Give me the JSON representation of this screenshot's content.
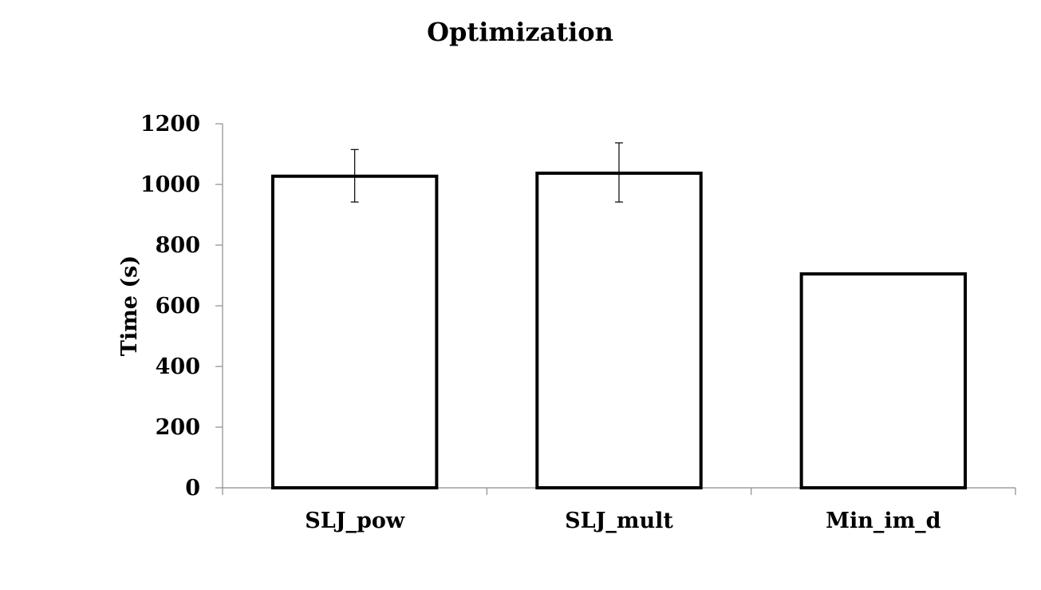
{
  "chart_data": {
    "type": "bar",
    "title": "Optimization",
    "ylabel": "Time (s)",
    "xlabel": "",
    "categories": [
      "SLJ_pow",
      "SLJ_mult",
      "Min_im_d"
    ],
    "values": [
      1027,
      1037,
      705
    ],
    "error_low": [
      942,
      942,
      705
    ],
    "error_high": [
      1115,
      1137,
      705
    ],
    "ylim": [
      0,
      1200
    ],
    "yticks": [
      0,
      200,
      400,
      600,
      800,
      1000,
      1200
    ],
    "ytick_labels": [
      "0",
      "200",
      "400",
      "600",
      "800",
      "1000",
      "1200"
    ],
    "grid": false,
    "legend": "none",
    "colors": {
      "bar_fill": "#ffffff",
      "bar_stroke": "#000000",
      "axis": "#8c8c8c"
    }
  }
}
